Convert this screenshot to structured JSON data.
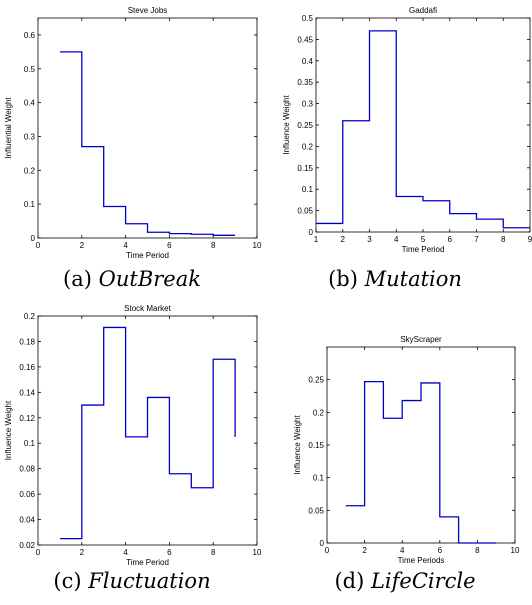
{
  "chart_data": [
    {
      "type": "line",
      "step": true,
      "title": "Steve Jobs",
      "xlabel": "Time Period",
      "ylabel": "Influential Weight",
      "xlim": [
        0,
        10
      ],
      "ylim": [
        0,
        0.65
      ],
      "xticks": [
        0,
        2,
        4,
        6,
        8,
        10
      ],
      "yticks": [
        0,
        0.1,
        0.2,
        0.3,
        0.4,
        0.5,
        0.6
      ],
      "x": [
        1,
        2,
        3,
        4,
        5,
        6,
        7,
        8,
        9
      ],
      "y": [
        0.55,
        0.27,
        0.093,
        0.042,
        0.017,
        0.013,
        0.011,
        0.008,
        0.008
      ],
      "color": "#0000cc",
      "caption_label": "(a) ",
      "caption_name": "OutBreak"
    },
    {
      "type": "line",
      "step": true,
      "title": "Gaddafi",
      "xlabel": "Time Period",
      "ylabel": "Influence Weight",
      "xlim": [
        1,
        9
      ],
      "ylim": [
        0,
        0.5
      ],
      "xticks": [
        1,
        2,
        3,
        4,
        5,
        6,
        7,
        8,
        9
      ],
      "yticks": [
        0,
        0.05,
        0.1,
        0.15,
        0.2,
        0.25,
        0.3,
        0.35,
        0.4,
        0.45,
        0.5
      ],
      "x": [
        1,
        2,
        3,
        4,
        5,
        6,
        7,
        8,
        9
      ],
      "y": [
        0.02,
        0.26,
        0.47,
        0.083,
        0.073,
        0.043,
        0.03,
        0.01,
        0.01
      ],
      "color": "#0000cc",
      "caption_label": "(b) ",
      "caption_name": "Mutation"
    },
    {
      "type": "line",
      "step": true,
      "title": "Stock Market",
      "xlabel": "Time Period",
      "ylabel": "Influence Weight",
      "xlim": [
        0,
        10
      ],
      "ylim": [
        0.02,
        0.2
      ],
      "xticks": [
        0,
        2,
        4,
        6,
        8,
        10
      ],
      "yticks": [
        0.02,
        0.04,
        0.06,
        0.08,
        0.1,
        0.12,
        0.14,
        0.16,
        0.18,
        0.2
      ],
      "x": [
        1,
        2,
        3,
        4,
        5,
        6,
        7,
        8,
        9
      ],
      "y": [
        0.025,
        0.13,
        0.191,
        0.105,
        0.136,
        0.076,
        0.065,
        0.166,
        0.105
      ],
      "color": "#0000cc",
      "caption_label": "(c) ",
      "caption_name": "Fluctuation"
    },
    {
      "type": "line",
      "step": true,
      "title": "SkyScraper",
      "xlabel": "Time Periods",
      "ylabel": "Influence Weight",
      "xlim": [
        0,
        10
      ],
      "ylim": [
        0,
        0.3
      ],
      "xticks": [
        0,
        2,
        4,
        6,
        8,
        10
      ],
      "yticks": [
        0,
        0.05,
        0.1,
        0.15,
        0.2,
        0.25
      ],
      "x": [
        1,
        2,
        3,
        4,
        5,
        6,
        7,
        8,
        9
      ],
      "y": [
        0.057,
        0.247,
        0.191,
        0.218,
        0.245,
        0.04,
        0.0,
        0.0,
        0.0
      ],
      "color": "#0000cc",
      "caption_label": "(d) ",
      "caption_name": "LifeCircle"
    }
  ]
}
